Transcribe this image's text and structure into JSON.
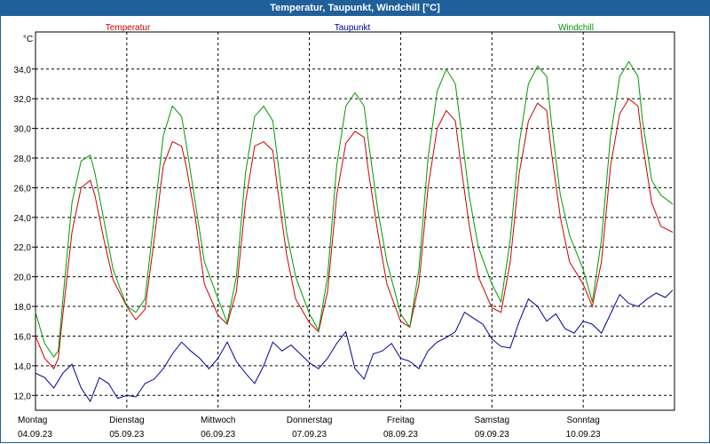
{
  "window": {
    "title": "Temperatur, Taupunkt, Windchill [°C]"
  },
  "chart_data": {
    "type": "line",
    "ylabel": "°C",
    "ylim": [
      11,
      36.5
    ],
    "yticks": [
      "12,0",
      "14,0",
      "16,0",
      "18,0",
      "20,0",
      "22,0",
      "24,0",
      "26,0",
      "28,0",
      "30,0",
      "32,0",
      "34,0"
    ],
    "ytick_values": [
      12,
      14,
      16,
      18,
      20,
      22,
      24,
      26,
      28,
      30,
      32,
      34
    ],
    "days": [
      {
        "weekday": "Montag",
        "date": "04.09.23"
      },
      {
        "weekday": "Dienstag",
        "date": "05.09.23"
      },
      {
        "weekday": "Mittwoch",
        "date": "06.09.23"
      },
      {
        "weekday": "Donnerstag",
        "date": "07.09.23"
      },
      {
        "weekday": "Freitag",
        "date": "08.09.23"
      },
      {
        "weekday": "Samstag",
        "date": "09.09.23"
      },
      {
        "weekday": "Sonntag",
        "date": "10.09.23"
      }
    ],
    "grid": true,
    "series": [
      {
        "name": "Temperatur",
        "color": "#cc0000",
        "x": [
          0,
          0.1,
          0.2,
          0.25,
          0.3,
          0.4,
          0.5,
          0.6,
          0.65,
          0.75,
          0.85,
          1,
          1.1,
          1.2,
          1.3,
          1.4,
          1.5,
          1.6,
          1.65,
          1.75,
          1.85,
          2,
          2.1,
          2.2,
          2.3,
          2.4,
          2.5,
          2.6,
          2.65,
          2.75,
          2.85,
          3,
          3.1,
          3.2,
          3.3,
          3.4,
          3.5,
          3.6,
          3.65,
          3.75,
          3.85,
          4,
          4.1,
          4.2,
          4.3,
          4.4,
          4.5,
          4.6,
          4.65,
          4.75,
          4.85,
          5,
          5.1,
          5.2,
          5.3,
          5.4,
          5.5,
          5.6,
          5.65,
          5.75,
          5.85,
          6,
          6.1,
          6.2,
          6.3,
          6.4,
          6.5,
          6.6,
          6.65,
          6.75,
          6.85,
          6.98
        ],
        "y": [
          16.0,
          14.5,
          13.8,
          14.5,
          17.5,
          23.0,
          26.0,
          26.5,
          25.5,
          22.5,
          19.8,
          18.0,
          17.1,
          17.8,
          22.5,
          27.5,
          29.1,
          28.8,
          27.5,
          24.0,
          19.5,
          17.4,
          16.8,
          19.0,
          25.0,
          28.8,
          29.1,
          28.5,
          26.0,
          21.5,
          18.5,
          16.9,
          16.3,
          19.0,
          25.5,
          29.0,
          29.8,
          29.4,
          27.0,
          23.0,
          19.5,
          17.0,
          16.6,
          19.5,
          26.0,
          30.0,
          31.2,
          30.5,
          28.0,
          23.5,
          20.0,
          17.9,
          17.6,
          21.0,
          27.0,
          30.5,
          31.7,
          31.2,
          28.5,
          24.0,
          21.0,
          19.5,
          18.0,
          21.0,
          27.5,
          31.0,
          32.0,
          31.5,
          29.0,
          25.0,
          23.4,
          23.0
        ]
      },
      {
        "name": "Taupunkt",
        "color": "#000099",
        "x": [
          0,
          0.1,
          0.2,
          0.3,
          0.4,
          0.5,
          0.6,
          0.7,
          0.8,
          0.9,
          1,
          1.1,
          1.2,
          1.3,
          1.4,
          1.5,
          1.6,
          1.7,
          1.8,
          1.9,
          2,
          2.1,
          2.2,
          2.3,
          2.4,
          2.5,
          2.6,
          2.7,
          2.8,
          2.9,
          3,
          3.1,
          3.2,
          3.3,
          3.4,
          3.5,
          3.6,
          3.7,
          3.8,
          3.9,
          4,
          4.1,
          4.2,
          4.3,
          4.4,
          4.5,
          4.6,
          4.7,
          4.8,
          4.9,
          5,
          5.1,
          5.2,
          5.3,
          5.4,
          5.5,
          5.6,
          5.7,
          5.8,
          5.9,
          6,
          6.1,
          6.2,
          6.3,
          6.4,
          6.5,
          6.6,
          6.7,
          6.8,
          6.9,
          6.98
        ],
        "y": [
          13.5,
          13.2,
          12.5,
          13.5,
          14.1,
          12.5,
          11.6,
          13.2,
          12.8,
          11.8,
          12.0,
          11.9,
          12.8,
          13.1,
          13.8,
          14.8,
          15.6,
          15.0,
          14.5,
          13.8,
          14.5,
          15.6,
          14.3,
          13.5,
          12.8,
          14.0,
          15.6,
          15.0,
          15.4,
          14.8,
          14.2,
          13.8,
          14.5,
          15.5,
          16.3,
          13.8,
          13.1,
          14.8,
          15.0,
          15.5,
          14.5,
          14.3,
          13.8,
          15.0,
          15.6,
          15.9,
          16.3,
          17.6,
          17.2,
          16.8,
          15.8,
          15.3,
          15.2,
          17.0,
          18.5,
          18.0,
          17.0,
          17.5,
          16.5,
          16.2,
          17.0,
          16.8,
          16.2,
          17.5,
          18.8,
          18.2,
          18.0,
          18.5,
          18.9,
          18.6,
          19.1
        ]
      },
      {
        "name": "Windchill",
        "color": "#009900",
        "x": [
          0,
          0.1,
          0.2,
          0.25,
          0.3,
          0.4,
          0.5,
          0.6,
          0.65,
          0.75,
          0.85,
          1,
          1.1,
          1.2,
          1.3,
          1.4,
          1.5,
          1.6,
          1.65,
          1.75,
          1.85,
          2,
          2.1,
          2.2,
          2.3,
          2.4,
          2.5,
          2.6,
          2.65,
          2.75,
          2.85,
          3,
          3.1,
          3.2,
          3.3,
          3.4,
          3.5,
          3.6,
          3.65,
          3.75,
          3.85,
          4,
          4.1,
          4.2,
          4.3,
          4.4,
          4.5,
          4.6,
          4.65,
          4.75,
          4.85,
          5,
          5.1,
          5.2,
          5.3,
          5.4,
          5.5,
          5.6,
          5.65,
          5.75,
          5.85,
          6,
          6.1,
          6.2,
          6.3,
          6.4,
          6.5,
          6.6,
          6.65,
          6.75,
          6.85,
          6.98
        ],
        "y": [
          17.6,
          15.5,
          14.6,
          15.0,
          18.5,
          25.0,
          27.8,
          28.2,
          27.0,
          23.8,
          20.5,
          18.0,
          17.6,
          18.5,
          24.0,
          29.5,
          31.5,
          30.8,
          29.0,
          25.0,
          21.0,
          18.5,
          16.9,
          20.0,
          27.0,
          30.8,
          31.5,
          30.5,
          28.0,
          23.0,
          20.0,
          17.5,
          16.4,
          20.0,
          27.5,
          31.5,
          32.4,
          31.5,
          29.0,
          24.5,
          21.0,
          17.5,
          16.6,
          20.5,
          28.0,
          32.5,
          34.0,
          33.0,
          30.5,
          25.5,
          22.0,
          19.5,
          18.3,
          22.5,
          29.0,
          33.0,
          34.2,
          33.5,
          30.5,
          25.5,
          22.8,
          20.5,
          18.3,
          22.5,
          29.5,
          33.5,
          34.5,
          33.5,
          30.5,
          26.5,
          25.5,
          24.9
        ]
      }
    ]
  }
}
